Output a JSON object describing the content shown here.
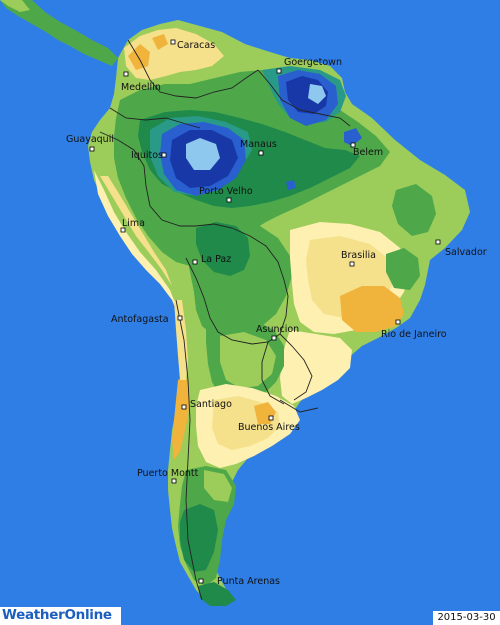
{
  "map": {
    "logo": "WeatherOnline",
    "date": "2015-03-30",
    "colors": {
      "ocean": "#2f7ee6",
      "very_dry": "#f0b43c",
      "dry": "#f5e08c",
      "pale": "#fdf0b0",
      "light_green": "#9ccc5a",
      "green": "#4ea84a",
      "dark_green": "#1f8a4a",
      "teal": "#2a9a88",
      "blue": "#2a5fd0",
      "dark_blue": "#1838a8",
      "light_blue": "#8ec8ef"
    },
    "cities": [
      {
        "name": "Caracas"
      },
      {
        "name": "Goergetown"
      },
      {
        "name": "Medellin"
      },
      {
        "name": "Guayaquil"
      },
      {
        "name": "Iquitos"
      },
      {
        "name": "Manaus"
      },
      {
        "name": "Belem"
      },
      {
        "name": "Porto Velho"
      },
      {
        "name": "Lima"
      },
      {
        "name": "La Paz"
      },
      {
        "name": "Brasilia"
      },
      {
        "name": "Salvador"
      },
      {
        "name": "Antofagasta"
      },
      {
        "name": "Asuncion"
      },
      {
        "name": "Rio de Janeiro"
      },
      {
        "name": "Santiago"
      },
      {
        "name": "Buenos Aires"
      },
      {
        "name": "Puerto Montt"
      },
      {
        "name": "Punta Arenas"
      }
    ]
  }
}
